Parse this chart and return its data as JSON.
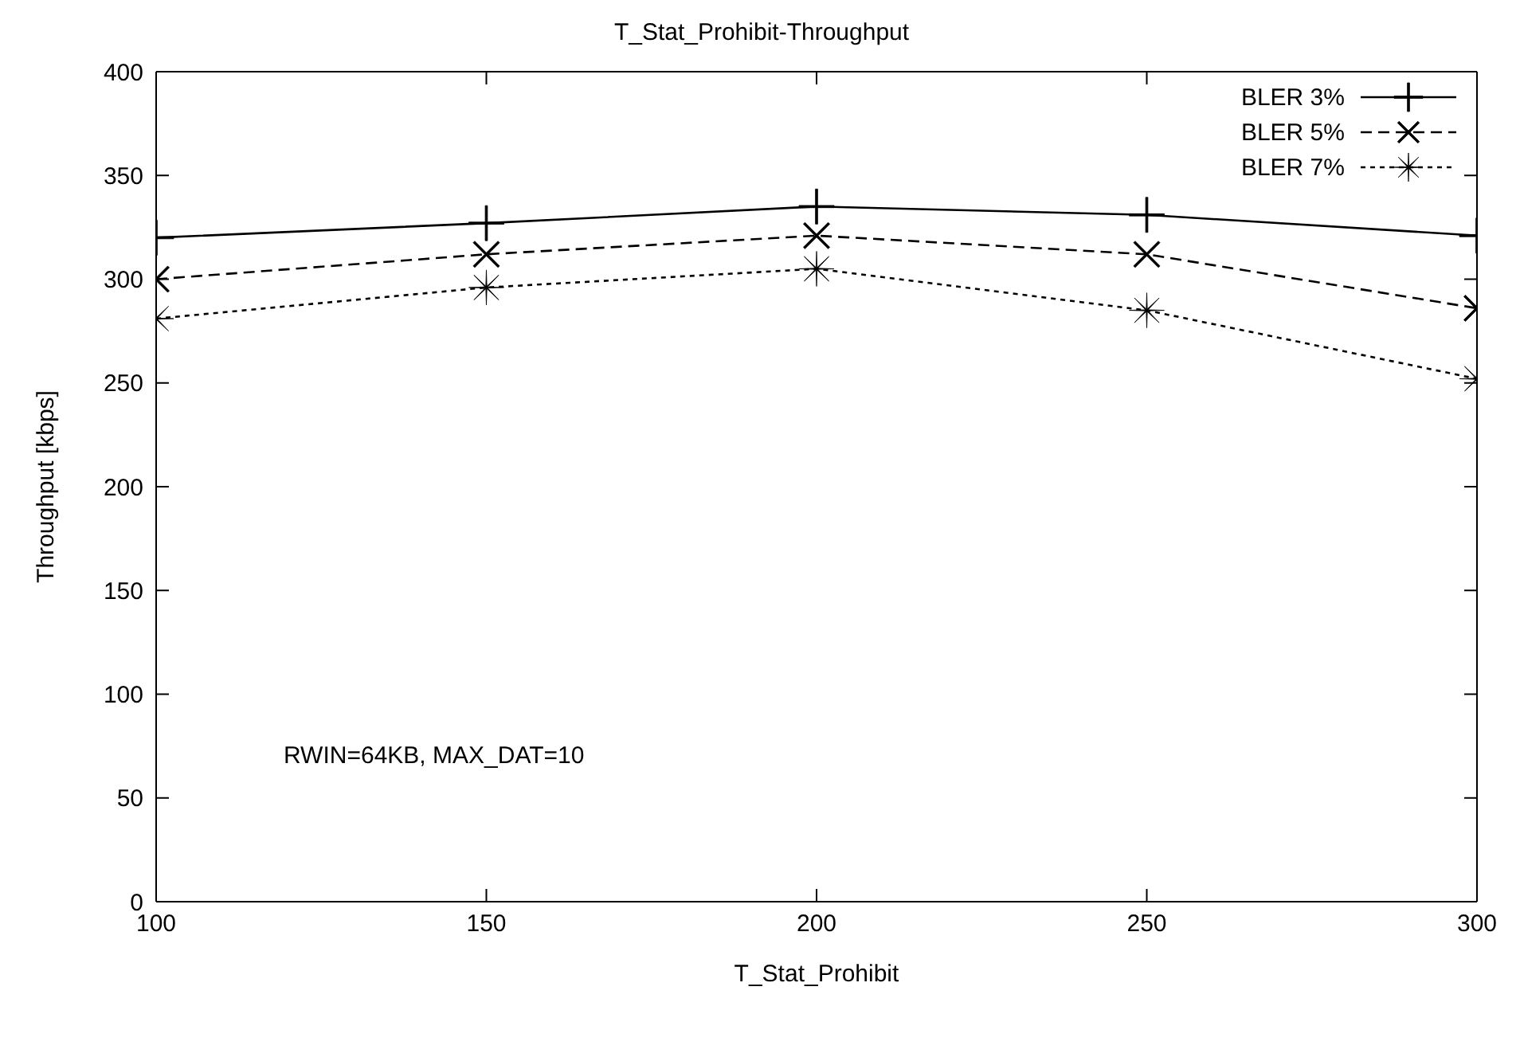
{
  "chart_data": {
    "type": "line",
    "title": "T_Stat_Prohibit-Throughput",
    "xlabel": "T_Stat_Prohibit",
    "ylabel": "Throughput [kbps]",
    "x": [
      100,
      150,
      200,
      250,
      300
    ],
    "series": [
      {
        "name": "BLER 3%",
        "color": "#000000",
        "marker": "cross",
        "line_style": "solid",
        "values": [
          320,
          327,
          335,
          331,
          321
        ]
      },
      {
        "name": "BLER 5%",
        "color": "#000000",
        "marker": "cross",
        "line_style": "dashed",
        "values": [
          300,
          312,
          321,
          312,
          286
        ]
      },
      {
        "name": "BLER 7%",
        "color": "#000000",
        "marker": "star",
        "line_style": "dotted",
        "values": [
          281,
          296,
          305,
          285,
          252
        ]
      }
    ],
    "xlim": [
      100,
      300
    ],
    "xticks": [
      100,
      150,
      200,
      250,
      300
    ],
    "ylim": [
      0,
      400
    ],
    "yticks": [
      0,
      50,
      100,
      150,
      200,
      250,
      300,
      350,
      400
    ],
    "grid": false,
    "legend": "top right",
    "annotations": [
      "RWIN=64KB, MAX_DAT=10"
    ]
  }
}
